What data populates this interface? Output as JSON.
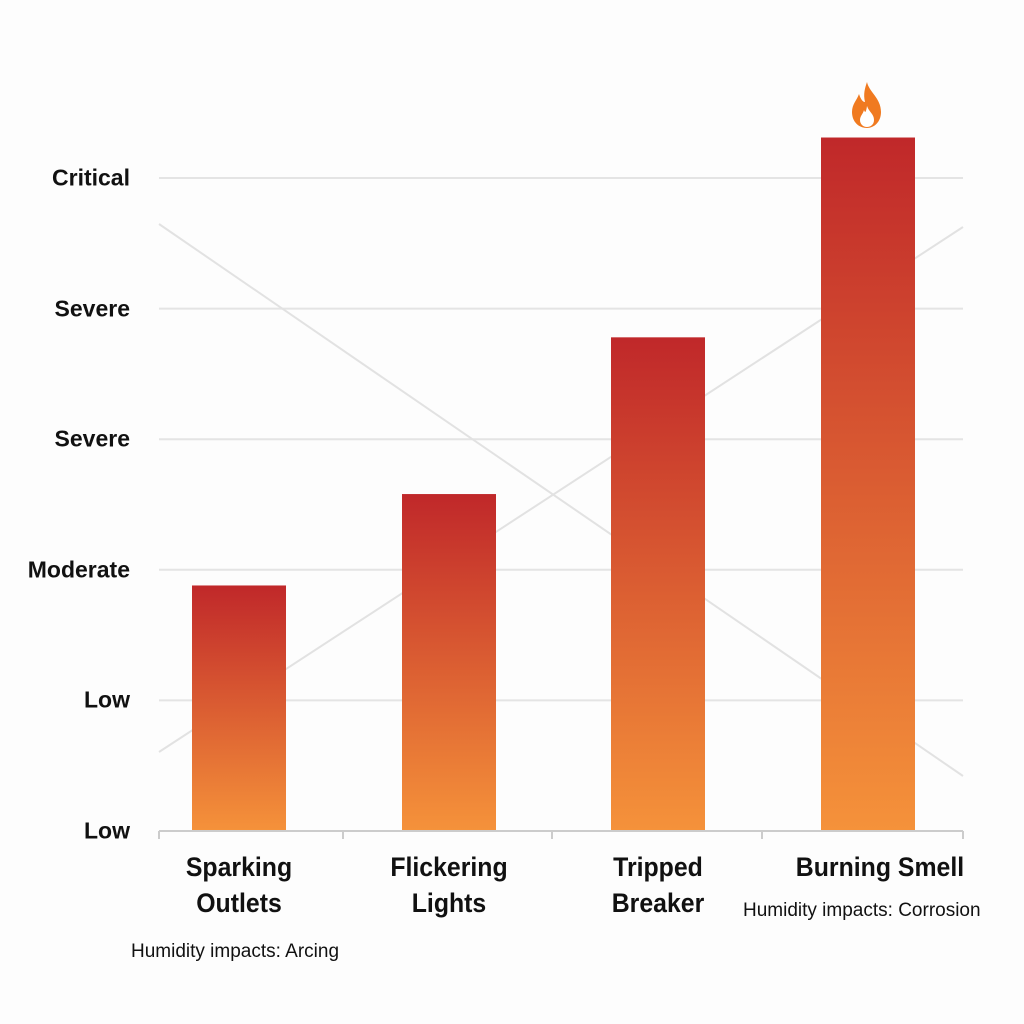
{
  "chart_data": {
    "type": "bar",
    "title": "",
    "xlabel": "",
    "ylabel": "",
    "categories": [
      "Sparking Outlets",
      "Flickering Lights",
      "Tripped Breaker",
      "Burning Smell"
    ],
    "category_lines": [
      [
        "Sparking",
        "Outlets"
      ],
      [
        "Flickering",
        "Lights"
      ],
      [
        "Tripped",
        "Breaker"
      ],
      [
        "Burning Smell"
      ]
    ],
    "values": [
      1.88,
      2.58,
      3.78,
      5.31
    ],
    "y_tick_labels": [
      "Low",
      "Low",
      "Moderate",
      "Severe",
      "Severe",
      "Critical"
    ],
    "y_tick_values": [
      0,
      1,
      2,
      3,
      4,
      5
    ],
    "ylim": [
      0,
      5.4
    ],
    "grid": true,
    "legend": null,
    "annotations": [
      {
        "text": "Humidity impacts: Arcing",
        "near": "Sparking Outlets"
      },
      {
        "text": "Humidity impacts: Corrosion",
        "near": "Burning Smell"
      },
      {
        "icon": "fire-icon",
        "near": "Burning Smell"
      }
    ],
    "colors": {
      "bar_top": "#c0282a",
      "bar_bottom": "#f5923a",
      "grid": "#e4e4e4",
      "axis": "#cccccc",
      "flame_outer": "#f07a20",
      "flame_inner": "#ffffff"
    }
  },
  "annotations": {
    "arcing": "Humidity impacts: Arcing",
    "corrosion": "Humidity impacts: Corrosion"
  }
}
